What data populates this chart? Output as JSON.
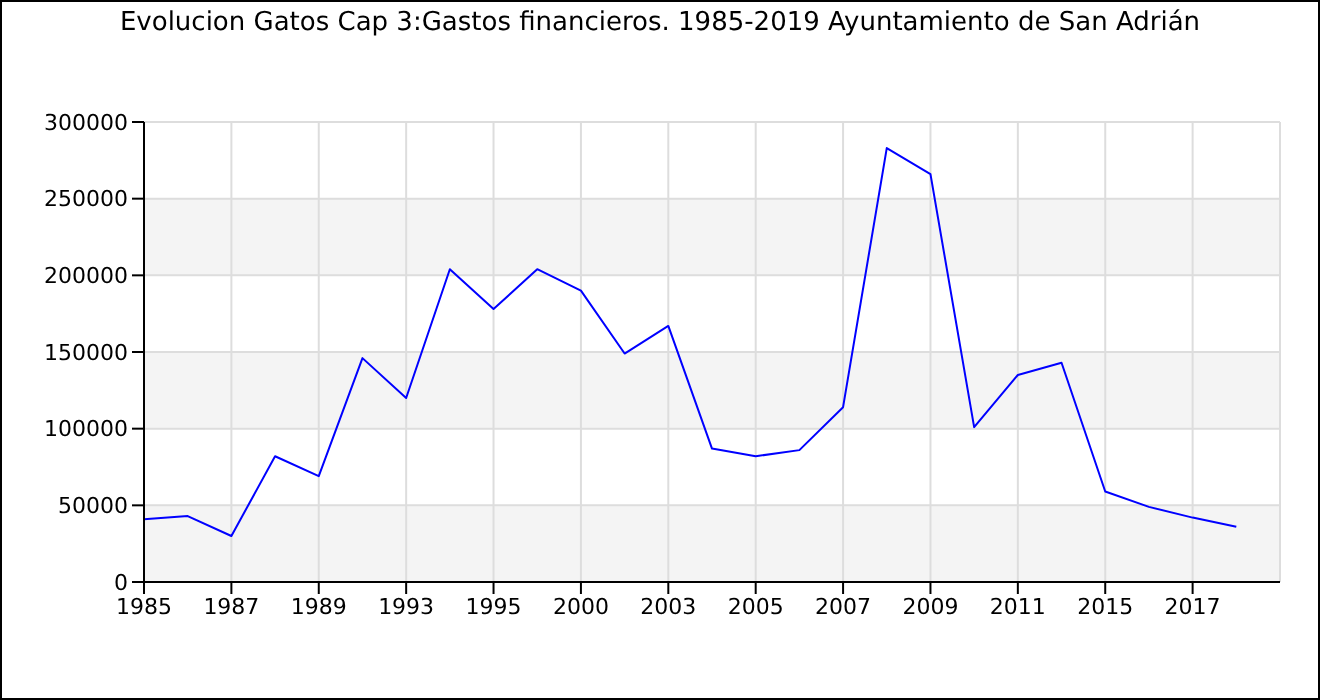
{
  "chart_data": {
    "type": "line",
    "title": "Evolucion Gatos Cap 3:Gastos financieros. 1985-2019 Ayuntamiento de San Adrián",
    "categories": [
      "1985",
      null,
      "1987",
      null,
      "1989",
      null,
      "1993",
      null,
      "1995",
      null,
      "2000",
      null,
      "2003",
      null,
      "2005",
      null,
      "2007",
      null,
      "2009",
      null,
      "2011",
      null,
      "2015",
      null,
      "2017",
      null
    ],
    "series": [
      {
        "color": "#0000ff",
        "values": [
          41000,
          43000,
          30000,
          82000,
          69000,
          146000,
          120000,
          204000,
          178000,
          204000,
          190000,
          149000,
          167000,
          87000,
          82000,
          86000,
          114000,
          283000,
          266000,
          101000,
          135000,
          143000,
          59000,
          49000,
          42000,
          36000
        ]
      }
    ],
    "ylim": [
      0,
      300000
    ],
    "yticks": [
      0,
      50000,
      100000,
      150000,
      200000,
      250000,
      300000
    ],
    "grid": true,
    "marker": "none",
    "line_style": "solid",
    "legend": false
  }
}
